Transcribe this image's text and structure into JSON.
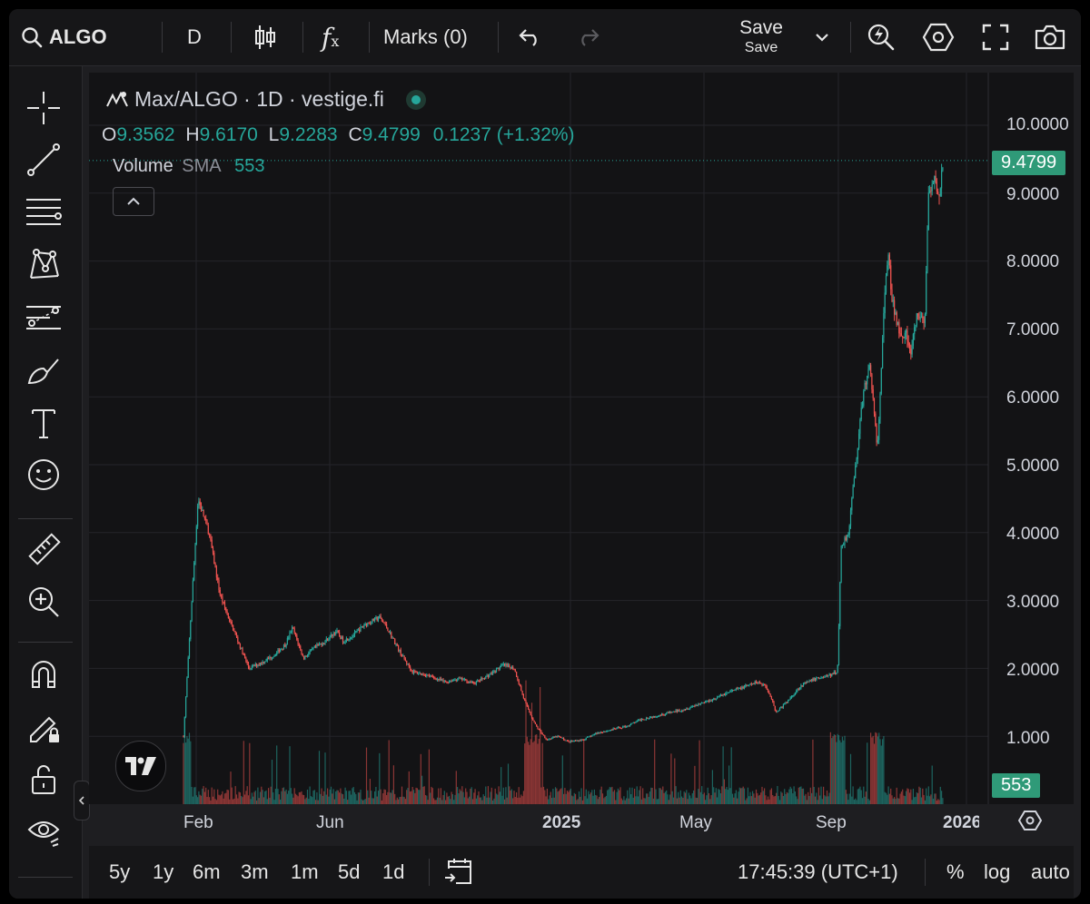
{
  "topbar": {
    "symbol": "ALGO",
    "interval": "D",
    "marks_label": "Marks (0)",
    "save_label": "Save",
    "save_sublabel": "Save"
  },
  "chart": {
    "title": "Max/ALGO · 1D · vestige.fi",
    "ohlc": {
      "o_label": "O",
      "o_value": "9.3562",
      "h_label": "H",
      "h_value": "9.6170",
      "l_label": "L",
      "l_value": "9.2283",
      "c_label": "C",
      "c_value": "9.4799",
      "change": "0.1237 (+1.32%)"
    },
    "volume_label": "Volume",
    "volume_sma_label": "SMA",
    "volume_value": "553",
    "price_badge": "9.4799",
    "volume_badge": "553",
    "y_axis_labels": [
      "10.0000",
      "9.0000",
      "8.0000",
      "7.0000",
      "6.0000",
      "5.0000",
      "4.0000",
      "3.0000",
      "2.0000",
      "1.000"
    ],
    "x_axis_labels": [
      "Feb",
      "Jun",
      "2025",
      "May",
      "Sep",
      "2026"
    ],
    "colors": {
      "up": "#26a69a",
      "down": "#ef5350",
      "badge": "#2f9a78"
    }
  },
  "chart_data": {
    "type": "line",
    "title": "Max/ALGO · 1D · vestige.fi",
    "y_scale": "linear",
    "ylim": [
      0.3,
      10.5
    ],
    "x_labels": [
      "Feb",
      "Jun",
      "2025",
      "May",
      "Sep",
      "2026"
    ],
    "series": [
      {
        "values": [
          [
            0.0,
            1.0
          ],
          [
            0.02,
            4.5
          ],
          [
            0.035,
            4.0
          ],
          [
            0.05,
            3.1
          ],
          [
            0.06,
            2.8
          ],
          [
            0.075,
            2.4
          ],
          [
            0.09,
            2.0
          ],
          [
            0.11,
            2.1
          ],
          [
            0.125,
            2.2
          ],
          [
            0.14,
            2.35
          ],
          [
            0.15,
            2.6
          ],
          [
            0.165,
            2.15
          ],
          [
            0.18,
            2.3
          ],
          [
            0.195,
            2.4
          ],
          [
            0.21,
            2.55
          ],
          [
            0.22,
            2.4
          ],
          [
            0.235,
            2.5
          ],
          [
            0.25,
            2.65
          ],
          [
            0.27,
            2.75
          ],
          [
            0.28,
            2.6
          ],
          [
            0.29,
            2.4
          ],
          [
            0.3,
            2.2
          ],
          [
            0.315,
            1.95
          ],
          [
            0.335,
            1.9
          ],
          [
            0.36,
            1.8
          ],
          [
            0.38,
            1.85
          ],
          [
            0.4,
            1.78
          ],
          [
            0.42,
            1.9
          ],
          [
            0.44,
            2.05
          ],
          [
            0.455,
            2.0
          ],
          [
            0.47,
            1.5
          ],
          [
            0.485,
            1.15
          ],
          [
            0.5,
            0.95
          ],
          [
            0.515,
            1.0
          ],
          [
            0.53,
            0.92
          ],
          [
            0.55,
            0.95
          ],
          [
            0.57,
            1.05
          ],
          [
            0.59,
            1.1
          ],
          [
            0.61,
            1.15
          ],
          [
            0.63,
            1.25
          ],
          [
            0.65,
            1.3
          ],
          [
            0.67,
            1.35
          ],
          [
            0.69,
            1.4
          ],
          [
            0.71,
            1.48
          ],
          [
            0.73,
            1.55
          ],
          [
            0.75,
            1.65
          ],
          [
            0.77,
            1.72
          ],
          [
            0.79,
            1.8
          ],
          [
            0.8,
            1.75
          ],
          [
            0.81,
            1.55
          ],
          [
            0.815,
            1.35
          ],
          [
            0.83,
            1.5
          ],
          [
            0.85,
            1.75
          ],
          [
            0.87,
            1.85
          ],
          [
            0.89,
            1.9
          ],
          [
            0.9,
            1.95
          ],
          [
            0.905,
            3.8
          ],
          [
            0.915,
            4.0
          ],
          [
            0.925,
            5.0
          ],
          [
            0.935,
            6.0
          ],
          [
            0.945,
            6.5
          ],
          [
            0.95,
            5.8
          ],
          [
            0.955,
            5.2
          ],
          [
            0.965,
            7.5
          ],
          [
            0.97,
            8.1
          ],
          [
            0.975,
            7.4
          ],
          [
            0.985,
            7.0
          ],
          [
            0.995,
            6.9
          ],
          [
            1.0,
            6.6
          ],
          [
            1.01,
            7.2
          ],
          [
            1.02,
            7.1
          ],
          [
            1.025,
            8.9
          ],
          [
            1.035,
            9.2
          ],
          [
            1.04,
            8.9
          ],
          [
            1.045,
            9.48
          ]
        ]
      }
    ],
    "volume_sma": 553,
    "last_price": 9.4799
  },
  "range_buttons": [
    "5y",
    "1y",
    "6m",
    "3m",
    "1m",
    "5d",
    "1d"
  ],
  "bottombar": {
    "clock": "17:45:39 (UTC+1)",
    "percent_label": "%",
    "log_label": "log",
    "auto_label": "auto"
  }
}
